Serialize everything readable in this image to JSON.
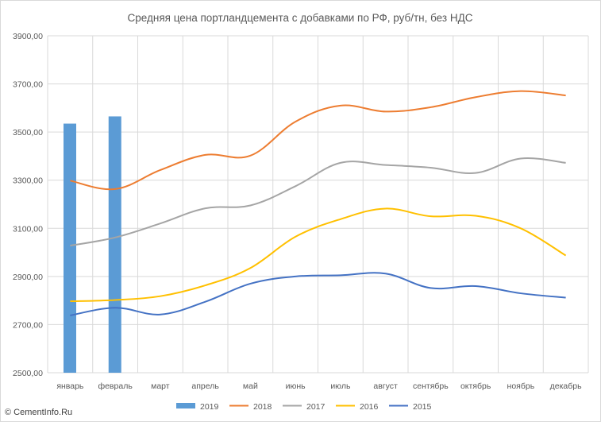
{
  "chart_data": {
    "type": "bar+line",
    "title": "Средняя цена портландцемента с добавками по РФ, руб/тн, без НДС",
    "categories": [
      "январь",
      "февраль",
      "март",
      "апрель",
      "май",
      "июнь",
      "июль",
      "август",
      "сентябрь",
      "октябрь",
      "ноябрь",
      "декабрь"
    ],
    "y_ticks": [
      "2500,00",
      "2700,00",
      "2900,00",
      "3100,00",
      "3300,00",
      "3500,00",
      "3700,00",
      "3900,00"
    ],
    "ylim": [
      2500,
      3900
    ],
    "grid": "on",
    "legend_position": "bottom",
    "bars": [
      {
        "name": "2019",
        "color": "#5b9bd5",
        "values": [
          3535,
          3565,
          null,
          null,
          null,
          null,
          null,
          null,
          null,
          null,
          null,
          null
        ]
      }
    ],
    "series": [
      {
        "name": "2018",
        "color": "#ed7d31",
        "values": [
          3298,
          3263,
          3342,
          3405,
          3402,
          3543,
          3610,
          3585,
          3603,
          3645,
          3670,
          3652
        ]
      },
      {
        "name": "2017",
        "color": "#a5a5a5",
        "values": [
          3028,
          3062,
          3120,
          3183,
          3195,
          3275,
          3372,
          3363,
          3352,
          3330,
          3390,
          3372
        ]
      },
      {
        "name": "2016",
        "color": "#ffc000",
        "values": [
          2797,
          2802,
          2818,
          2863,
          2935,
          3065,
          3138,
          3182,
          3150,
          3152,
          3100,
          2987
        ]
      },
      {
        "name": "2015",
        "color": "#4472c4",
        "values": [
          2738,
          2770,
          2742,
          2795,
          2870,
          2900,
          2905,
          2912,
          2852,
          2860,
          2830,
          2812
        ]
      }
    ]
  },
  "footer": {
    "text": "© CementInfo.Ru"
  }
}
